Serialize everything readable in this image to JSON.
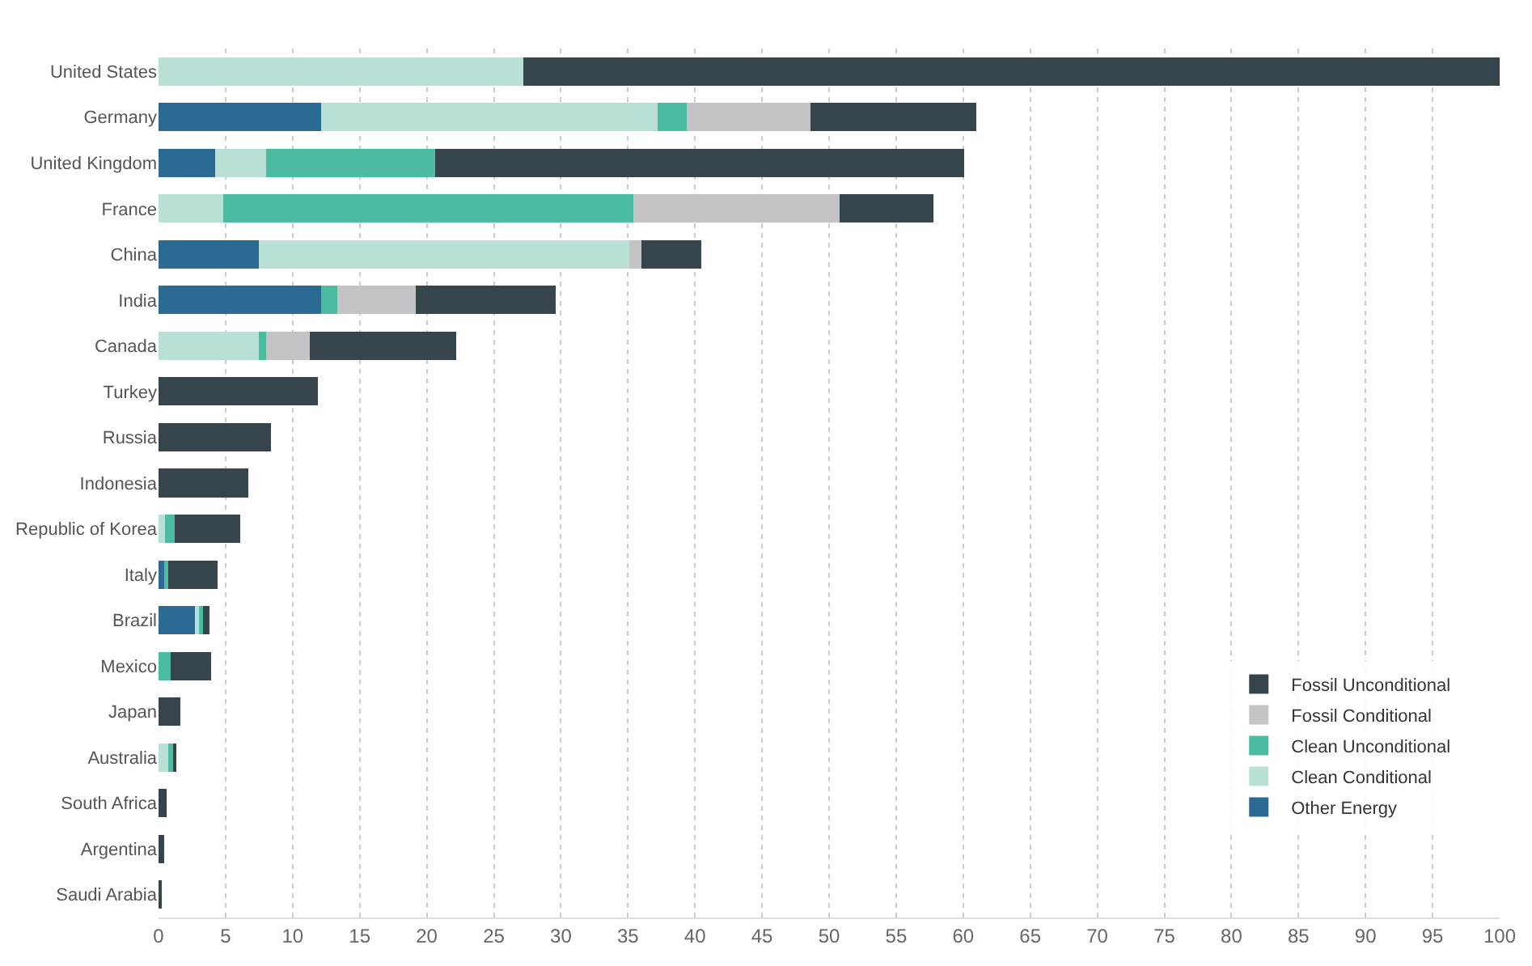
{
  "chart_data": {
    "type": "bar",
    "orientation": "horizontal",
    "stacked": true,
    "categories": [
      "United States",
      "Germany",
      "United Kingdom",
      "France",
      "China",
      "India",
      "Canada",
      "Turkey",
      "Russia",
      "Indonesia",
      "Republic of Korea",
      "Italy",
      "Brazil",
      "Mexico",
      "Japan",
      "Australia",
      "South Africa",
      "Argentina",
      "Saudi Arabia"
    ],
    "series": [
      {
        "name": "Other Energy",
        "color": "#2b6a93",
        "values": [
          0,
          12.1,
          4.2,
          0,
          7.5,
          12.1,
          0,
          0,
          0,
          0,
          0,
          0.4,
          2.7,
          0,
          0,
          0,
          0,
          0,
          0
        ]
      },
      {
        "name": "Clean Conditional",
        "color": "#b9e0d6",
        "values": [
          27.2,
          25.1,
          3.8,
          4.8,
          27.6,
          0,
          7.5,
          0,
          0,
          0,
          0.5,
          0,
          0.4,
          0,
          0,
          0.7,
          0,
          0,
          0
        ]
      },
      {
        "name": "Clean Unconditional",
        "color": "#4dbb9f",
        "values": [
          0,
          2.2,
          12.6,
          30.6,
          0,
          1.2,
          0.5,
          0,
          0,
          0,
          0.7,
          0.3,
          0.2,
          0.9,
          0,
          0.4,
          0,
          0,
          0
        ]
      },
      {
        "name": "Fossil Conditional",
        "color": "#c4c4c6",
        "values": [
          0,
          9.2,
          0,
          15.4,
          0.9,
          5.9,
          3.3,
          0,
          0,
          0,
          0,
          0,
          0,
          0,
          0,
          0,
          0,
          0,
          0
        ]
      },
      {
        "name": "Fossil Unconditional",
        "color": "#36454b",
        "values": [
          72.8,
          12.4,
          39.5,
          7.0,
          4.5,
          10.4,
          10.9,
          11.9,
          8.4,
          6.7,
          4.9,
          3.7,
          0.5,
          3.0,
          1.6,
          0.2,
          0.6,
          0.4,
          0.2
        ]
      }
    ],
    "xlim": [
      0,
      100
    ],
    "xticks": [
      0,
      5,
      10,
      15,
      20,
      25,
      30,
      35,
      40,
      45,
      50,
      55,
      60,
      65,
      70,
      75,
      80,
      85,
      90,
      95,
      100
    ],
    "grid": "x",
    "legend": "bottom right"
  }
}
